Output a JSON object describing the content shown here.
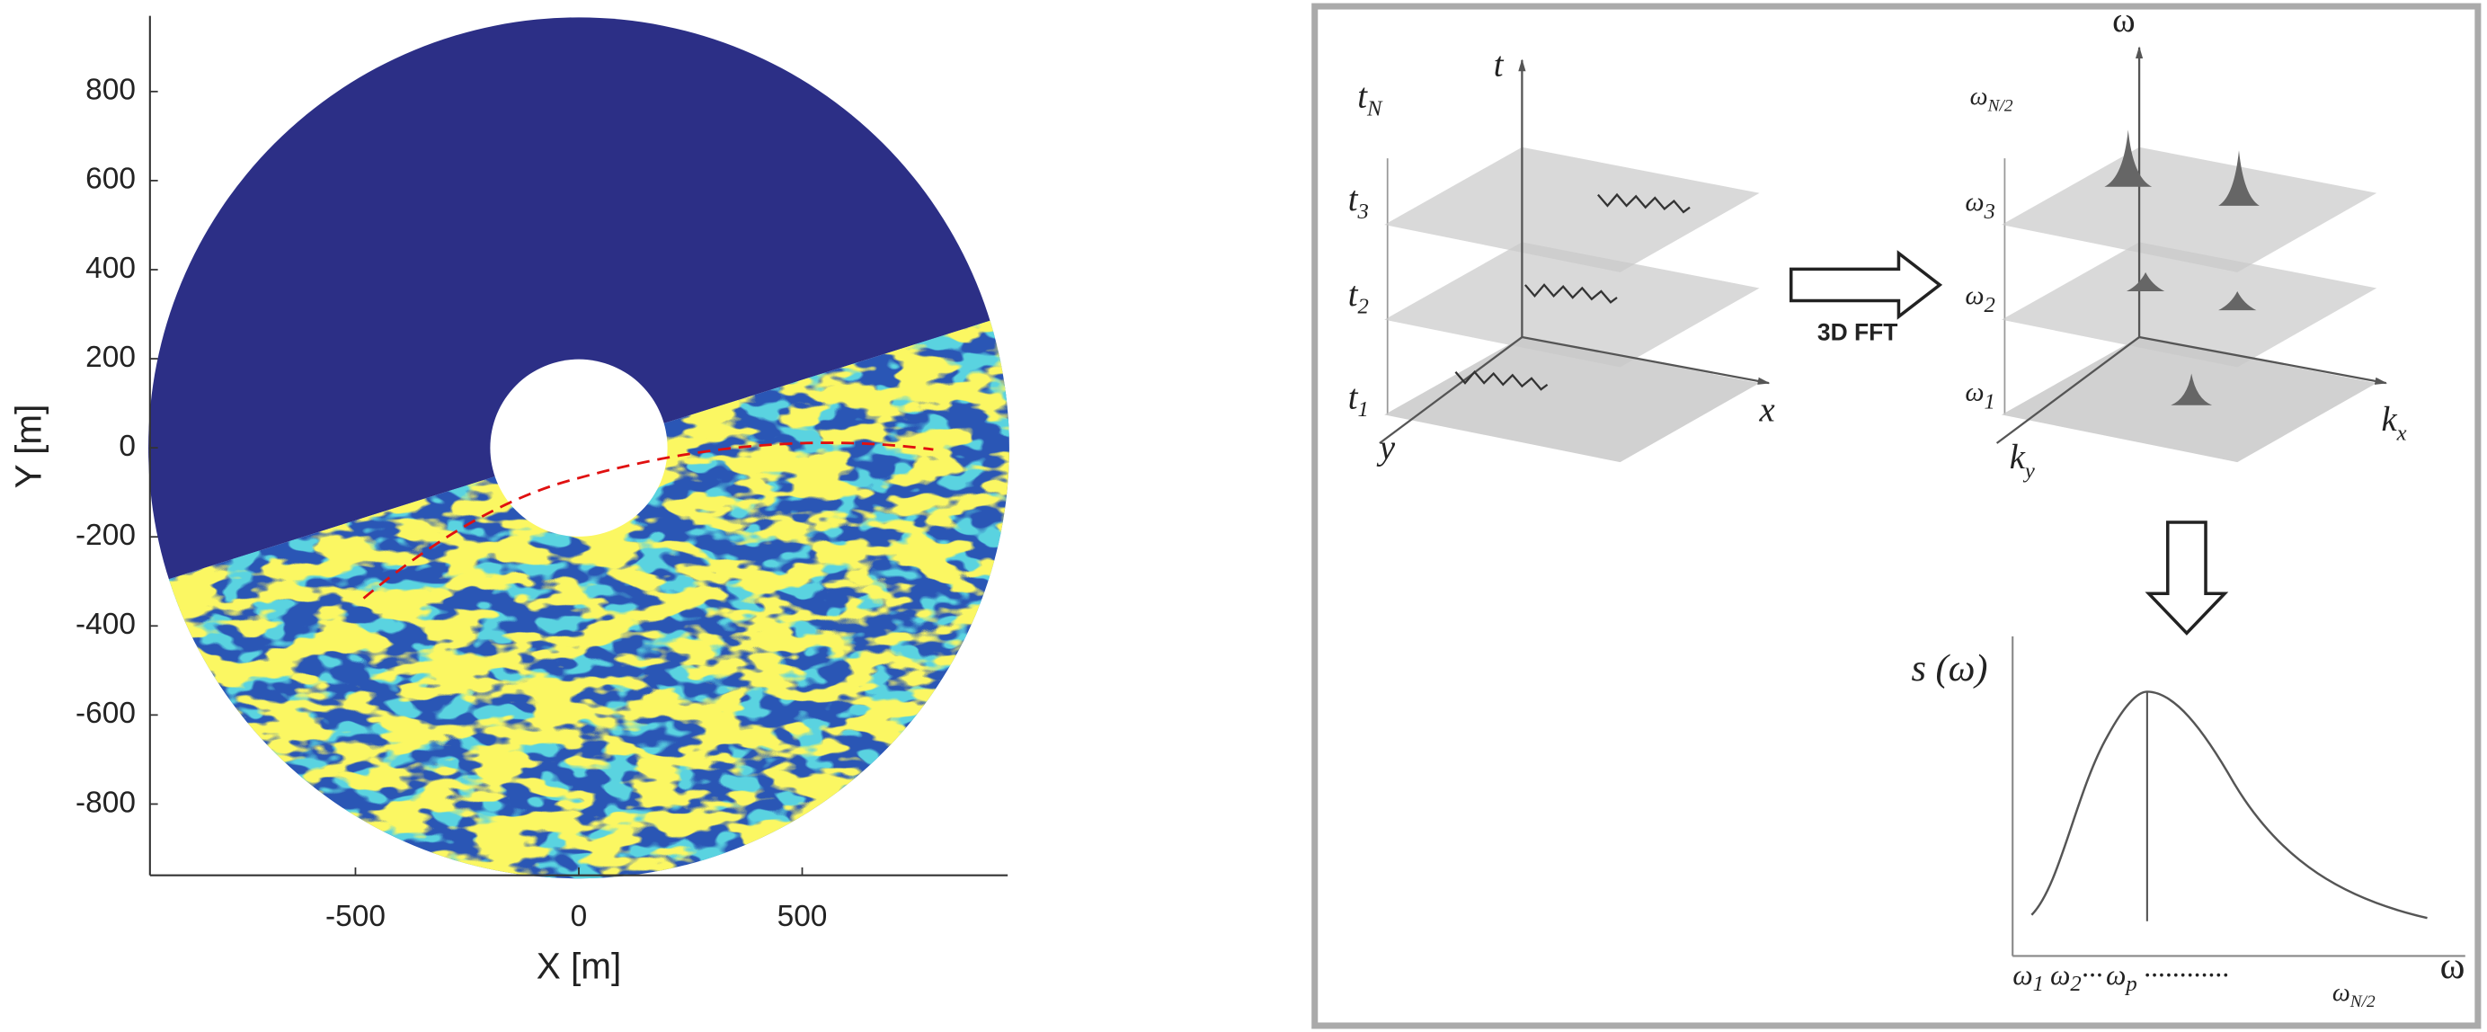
{
  "chart_data": {
    "type": "image",
    "xlabel": "X [m]",
    "ylabel": "Y [m]",
    "xlim": [
      -960,
      960
    ],
    "ylim": [
      -960,
      970
    ],
    "xticks": [
      -500,
      0,
      500
    ],
    "yticks": [
      -800,
      -600,
      -400,
      -200,
      0,
      200,
      400,
      600,
      800
    ]
  },
  "diagram": {
    "stack_left": {
      "axis": "t",
      "x": "x",
      "y": "y",
      "levels": [
        {
          "base": "t",
          "sub": "N"
        },
        {
          "base": "t",
          "sub": "3"
        },
        {
          "base": "t",
          "sub": "2"
        },
        {
          "base": "t",
          "sub": "1"
        }
      ]
    },
    "transform": "3D FFT",
    "stack_right": {
      "axis": "ω",
      "x": {
        "base": "k",
        "sub": "x"
      },
      "y": {
        "base": "k",
        "sub": "y"
      },
      "levels": [
        {
          "base": "ω",
          "sub": "N/2"
        },
        {
          "base": "ω",
          "sub": "3"
        },
        {
          "base": "ω",
          "sub": "2"
        },
        {
          "base": "ω",
          "sub": "1"
        }
      ]
    },
    "spectrum": {
      "ylabel": "s (ω)",
      "xlabel": "ω",
      "ticks": [
        {
          "base": "ω",
          "sub": "1"
        },
        {
          "base": "ω",
          "sub": "2"
        },
        "···",
        {
          "base": "ω",
          "sub": "p"
        },
        "············",
        {
          "base": "ω",
          "sub": "N/2"
        }
      ]
    }
  }
}
